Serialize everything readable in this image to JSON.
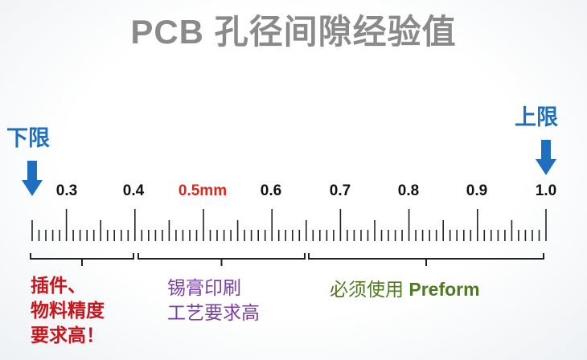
{
  "title": "PCB 孔径间隙经验值",
  "lower_limit": "下限",
  "upper_limit": "上限",
  "scale_labels": [
    "0.3",
    "0.4",
    "0.5mm",
    "0.6",
    "0.7",
    "0.8",
    "0.9",
    "1.0"
  ],
  "highlight_color": "#e3241b",
  "groups": [
    {
      "lines": [
        "插件、",
        "物料精度",
        "要求高！"
      ],
      "color": "#c8151b"
    },
    {
      "lines": [
        "锡膏印刷",
        "工艺要求高"
      ],
      "color": "#7a3fa3"
    },
    {
      "text": "必须使用 ",
      "emphasis": "Preform",
      "color": "#4f7a1f"
    }
  ],
  "icons": {
    "lower_arrow": "arrow-down-icon",
    "upper_arrow": "arrow-down-icon"
  }
}
